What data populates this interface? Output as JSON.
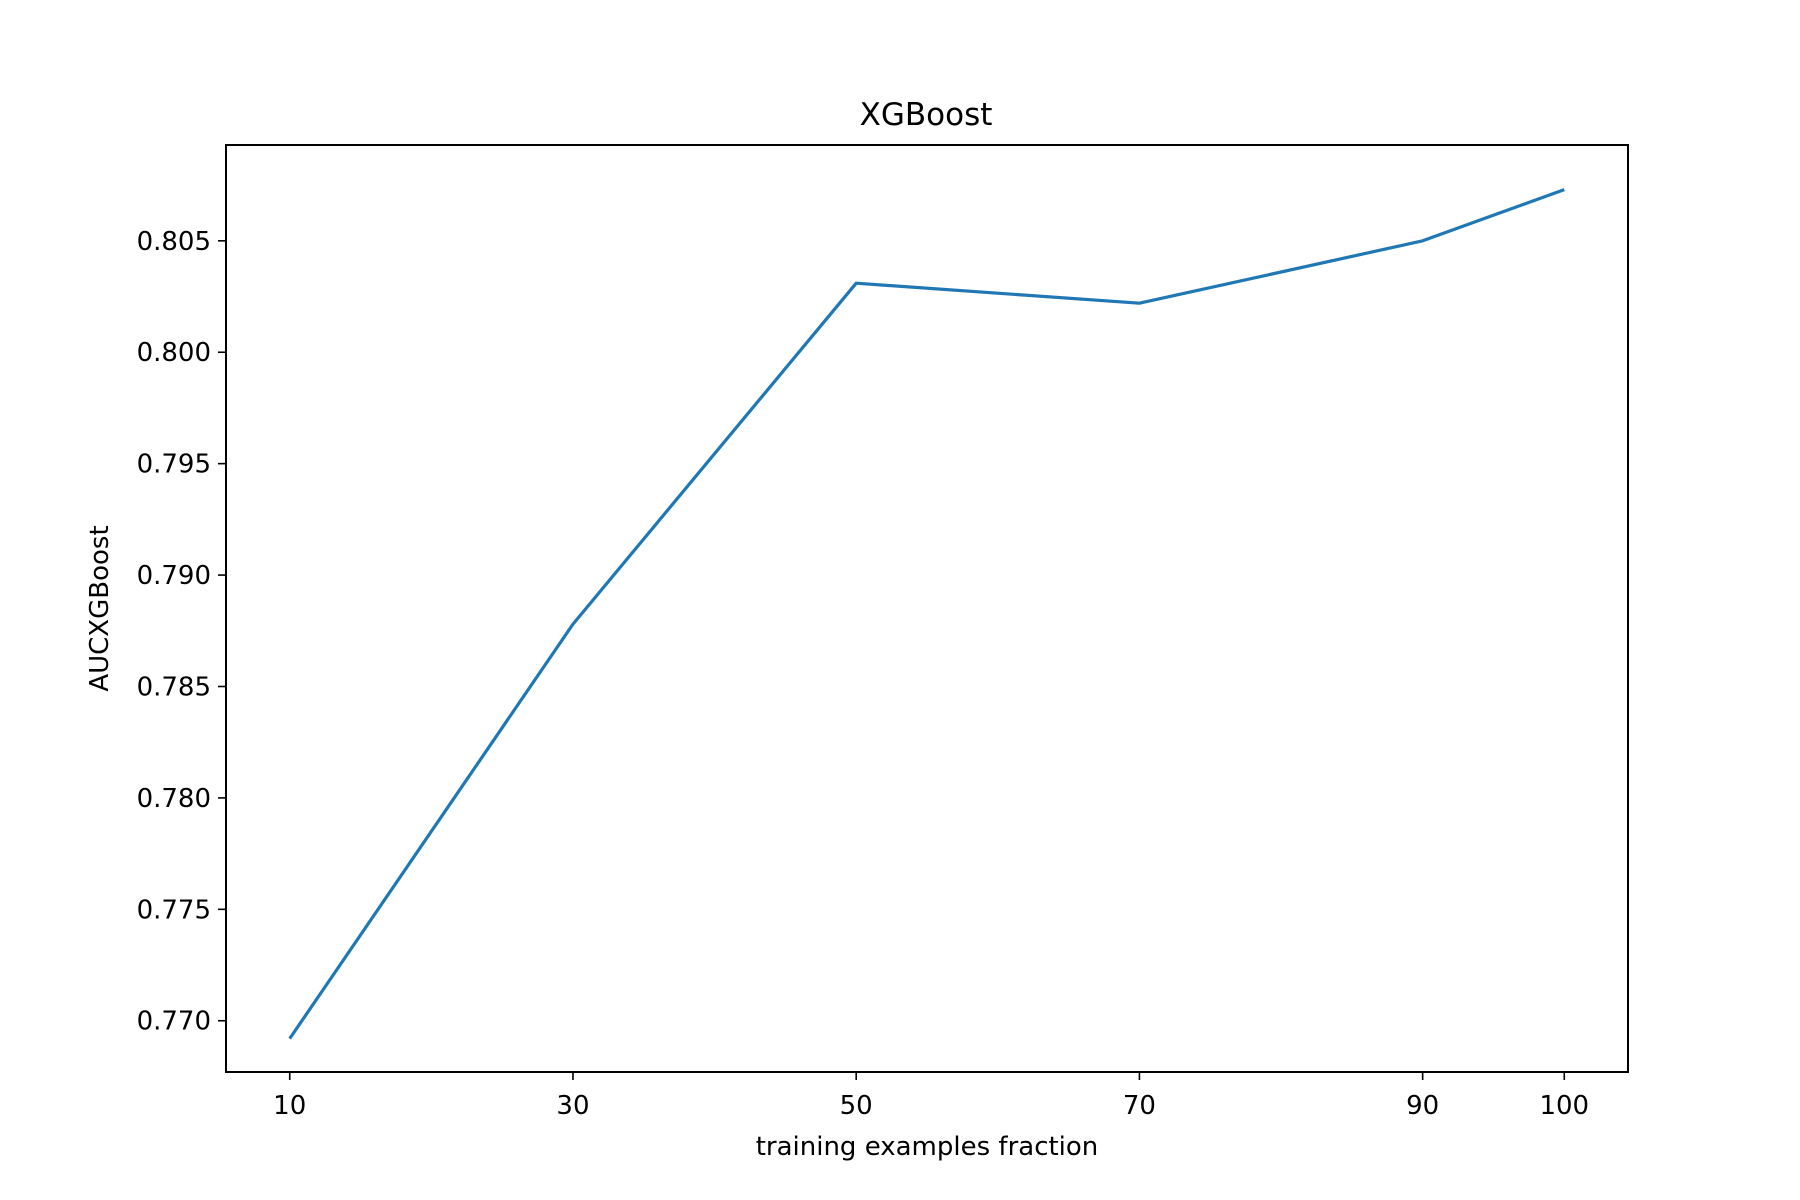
{
  "chart_data": {
    "type": "line",
    "title": "XGBoost",
    "xlabel": "training examples fraction",
    "ylabel": "AUCXGBoost",
    "x": [
      10,
      30,
      50,
      70,
      90,
      100
    ],
    "x_tick_labels": [
      "10",
      "30",
      "50",
      "70",
      "90",
      "100"
    ],
    "y_tick_values": [
      0.77,
      0.775,
      0.78,
      0.785,
      0.79,
      0.795,
      0.8,
      0.805
    ],
    "y_tick_labels": [
      "0.770",
      "0.775",
      "0.780",
      "0.785",
      "0.790",
      "0.795",
      "0.800",
      "0.805"
    ],
    "xlim": [
      5.5,
      104.5
    ],
    "ylim": [
      0.7677,
      0.8093
    ],
    "grid": false,
    "series": [
      {
        "values": [
          0.7692,
          0.7878,
          0.8031,
          0.8022,
          0.805,
          0.8073
        ],
        "color": "#1f77b4"
      }
    ]
  }
}
